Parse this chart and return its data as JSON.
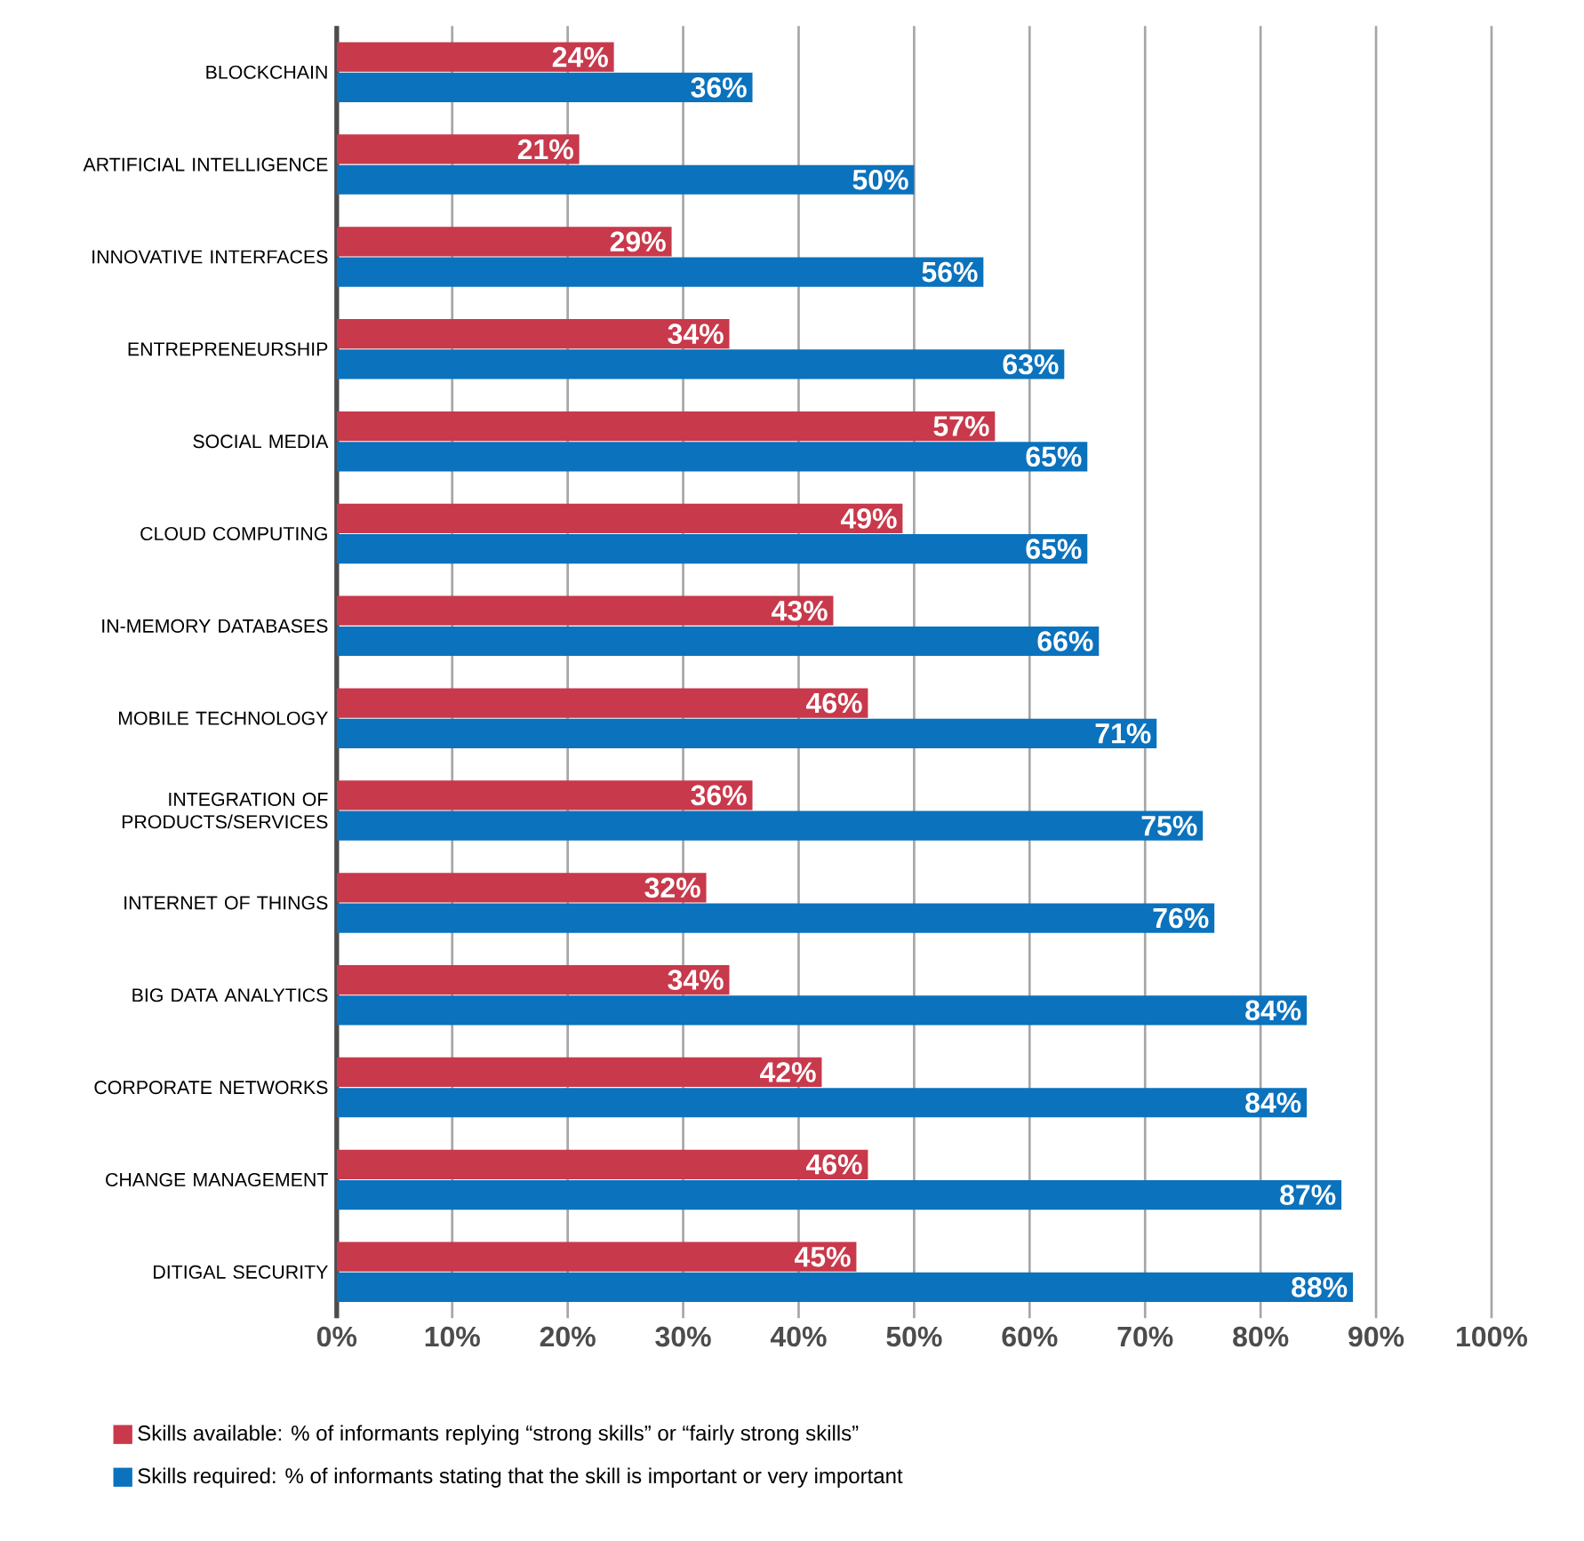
{
  "chart_data": {
    "type": "bar",
    "orientation": "horizontal",
    "categories": [
      "BLOCKCHAIN",
      "ARTIFICIAL INTELLIGENCE",
      "INNOVATIVE INTERFACES",
      "ENTREPRENEURSHIP",
      "SOCIAL MEDIA",
      "CLOUD COMPUTING",
      "IN-MEMORY DATABASES",
      "MOBILE TECHNOLOGY",
      "INTEGRATION OF PRODUCTS/SERVICES",
      "INTERNET OF THINGS",
      "BIG DATA ANALYTICS",
      "CORPORATE NETWORKS",
      "CHANGE MANAGEMENT",
      "DITIGAL SECURITY"
    ],
    "series": [
      {
        "name": "Skills available: % of informants replying “strong skills” or “fairly strong skills”",
        "color": "#c8394b",
        "values": [
          24,
          21,
          29,
          34,
          57,
          49,
          43,
          46,
          36,
          32,
          34,
          42,
          46,
          45
        ],
        "value_labels": [
          "24%",
          "21%",
          "29%",
          "34%",
          "57%",
          "49%",
          "43%",
          "46%",
          "36%",
          "32%",
          "34%",
          "42%",
          "46%",
          "45%"
        ]
      },
      {
        "name": "Skills required: % of informants stating that the skill is important or very important",
        "color": "#0b72bd",
        "values": [
          36,
          50,
          56,
          63,
          65,
          65,
          66,
          71,
          75,
          76,
          84,
          84,
          87,
          88
        ],
        "value_labels": [
          "36%",
          "50%",
          "56%",
          "63%",
          "65%",
          "65%",
          "66%",
          "71%",
          "75%",
          "76%",
          "84%",
          "84%",
          "87%",
          "88%"
        ]
      }
    ],
    "xlim": [
      0,
      100
    ],
    "xticks": [
      {
        "value": 0,
        "label": "0%"
      },
      {
        "value": 10,
        "label": "10%"
      },
      {
        "value": 20,
        "label": "20%"
      },
      {
        "value": 30,
        "label": "30%"
      },
      {
        "value": 40,
        "label": "40%"
      },
      {
        "value": 50,
        "label": "50%"
      },
      {
        "value": 60,
        "label": "60%"
      },
      {
        "value": 70,
        "label": "70%"
      },
      {
        "value": 80,
        "label": "80%"
      },
      {
        "value": 90,
        "label": "90%"
      },
      {
        "value": 100,
        "label": "100%"
      }
    ],
    "grid": "x",
    "legend": "bottom"
  }
}
